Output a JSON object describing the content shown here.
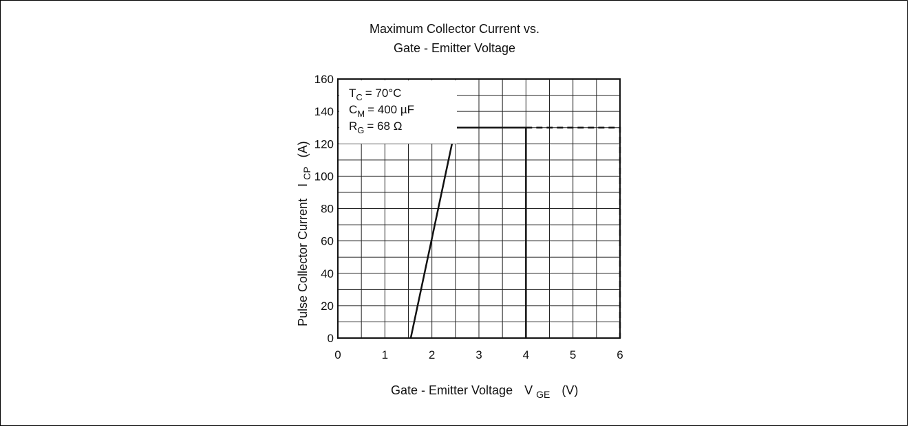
{
  "chart_data": {
    "type": "line",
    "title_line1": "Maximum Collector Current vs.",
    "title_line2": "Gate - Emitter Voltage",
    "xlabel": "Gate - Emitter Voltage",
    "xlabel_symbol": "V",
    "xlabel_sub": "GE",
    "xlabel_unit": "(V)",
    "ylabel": "Pulse Collector Current",
    "ylabel_symbol": "I",
    "ylabel_sub": "CP",
    "ylabel_unit": "(A)",
    "xlim": [
      0,
      6
    ],
    "ylim": [
      0,
      160
    ],
    "x_ticks": [
      "0",
      "1",
      "2",
      "3",
      "4",
      "5",
      "6"
    ],
    "y_ticks": [
      "0",
      "20",
      "40",
      "60",
      "80",
      "100",
      "120",
      "140",
      "160"
    ],
    "grid": true,
    "conditions": [
      {
        "symbol": "T",
        "sub": "C",
        "value": "= 70°C"
      },
      {
        "symbol": "C",
        "sub": "M",
        "value": "= 400 µF"
      },
      {
        "symbol": "R",
        "sub": "G",
        "value": "= 68 Ω"
      }
    ],
    "series": [
      {
        "style": "solid",
        "x": [
          1.55,
          2.5,
          4.0,
          4.0
        ],
        "y": [
          0,
          130,
          130,
          0
        ]
      },
      {
        "style": "dashed",
        "x": [
          4.0,
          6.0,
          6.0
        ],
        "y": [
          130,
          130,
          0
        ]
      }
    ],
    "line_color": "#111111",
    "grid_color": "#222222"
  }
}
